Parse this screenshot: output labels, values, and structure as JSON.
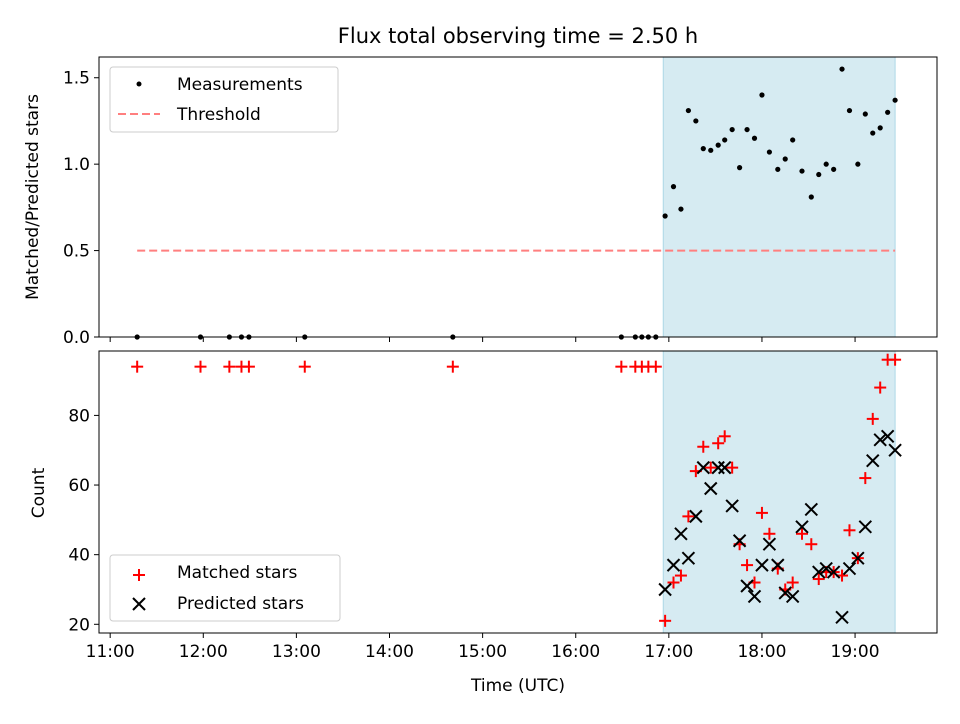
{
  "colors": {
    "shade": "#add8e6",
    "measurement": "#000000",
    "threshold": "#ff7f7f",
    "matched": "#ff0000",
    "predicted": "#000000"
  },
  "chart_data": [
    {
      "type": "scatter",
      "title": "Flux total observing time = 2.50 h",
      "xlabel": "",
      "ylabel": "Matched/Predicted stars",
      "xlim": [
        10.88,
        19.88
      ],
      "ylim": [
        0,
        1.62
      ],
      "yticks": [
        0.0,
        0.5,
        1.0,
        1.5
      ],
      "yticklabels": [
        "0.0",
        "0.5",
        "1.0",
        "1.5"
      ],
      "legend": "upper-left",
      "shaded_region": [
        16.94,
        19.43
      ],
      "series": [
        {
          "name": "Measurements",
          "marker": "dot",
          "points": [
            [
              11.29,
              0.0
            ],
            [
              11.97,
              0.0
            ],
            [
              12.28,
              0.0
            ],
            [
              12.41,
              0.0
            ],
            [
              12.49,
              0.0
            ],
            [
              13.09,
              0.0
            ],
            [
              14.68,
              0.0
            ],
            [
              16.49,
              0.0
            ],
            [
              16.64,
              0.0
            ],
            [
              16.71,
              0.0
            ],
            [
              16.78,
              0.0
            ],
            [
              16.86,
              0.0
            ],
            [
              16.96,
              0.7
            ],
            [
              17.05,
              0.87
            ],
            [
              17.13,
              0.74
            ],
            [
              17.21,
              1.31
            ],
            [
              17.29,
              1.25
            ],
            [
              17.37,
              1.09
            ],
            [
              17.45,
              1.08
            ],
            [
              17.53,
              1.11
            ],
            [
              17.6,
              1.14
            ],
            [
              17.68,
              1.2
            ],
            [
              17.76,
              0.98
            ],
            [
              17.84,
              1.2
            ],
            [
              17.92,
              1.15
            ],
            [
              18.0,
              1.4
            ],
            [
              18.08,
              1.07
            ],
            [
              18.17,
              0.97
            ],
            [
              18.25,
              1.03
            ],
            [
              18.33,
              1.14
            ],
            [
              18.43,
              0.96
            ],
            [
              18.53,
              0.81
            ],
            [
              18.61,
              0.94
            ],
            [
              18.69,
              1.0
            ],
            [
              18.77,
              0.97
            ],
            [
              18.86,
              1.55
            ],
            [
              18.94,
              1.31
            ],
            [
              19.03,
              1.0
            ],
            [
              19.11,
              1.29
            ],
            [
              19.19,
              1.18
            ],
            [
              19.27,
              1.21
            ],
            [
              19.35,
              1.3
            ],
            [
              19.43,
              1.37
            ]
          ]
        },
        {
          "name": "Threshold",
          "marker": "dashed-line",
          "points": [
            [
              11.29,
              0.5
            ],
            [
              19.43,
              0.5
            ]
          ]
        }
      ]
    },
    {
      "type": "scatter",
      "title": "",
      "xlabel": "Time (UTC)",
      "ylabel": "Count",
      "xlim": [
        10.88,
        19.88
      ],
      "ylim": [
        17.5,
        98.5
      ],
      "xticks": [
        11,
        12,
        13,
        14,
        15,
        16,
        17,
        18,
        19
      ],
      "xticklabels": [
        "11:00",
        "12:00",
        "13:00",
        "14:00",
        "15:00",
        "16:00",
        "17:00",
        "18:00",
        "19:00"
      ],
      "yticks": [
        20,
        40,
        60,
        80
      ],
      "yticklabels": [
        "20",
        "40",
        "60",
        "80"
      ],
      "legend": "lower-left",
      "shaded_region": [
        16.94,
        19.43
      ],
      "series": [
        {
          "name": "Matched stars",
          "marker": "plus",
          "points": [
            [
              11.29,
              94
            ],
            [
              11.97,
              94
            ],
            [
              12.28,
              94
            ],
            [
              12.41,
              94
            ],
            [
              12.49,
              94
            ],
            [
              13.09,
              94
            ],
            [
              14.68,
              94
            ],
            [
              16.49,
              94
            ],
            [
              16.64,
              94
            ],
            [
              16.71,
              94
            ],
            [
              16.78,
              94
            ],
            [
              16.86,
              94
            ],
            [
              16.96,
              21
            ],
            [
              17.05,
              32
            ],
            [
              17.13,
              34
            ],
            [
              17.21,
              51
            ],
            [
              17.29,
              64
            ],
            [
              17.37,
              71
            ],
            [
              17.45,
              65
            ],
            [
              17.53,
              72
            ],
            [
              17.6,
              74
            ],
            [
              17.68,
              65
            ],
            [
              17.76,
              43
            ],
            [
              17.84,
              37
            ],
            [
              17.92,
              32
            ],
            [
              18.0,
              52
            ],
            [
              18.08,
              46
            ],
            [
              18.17,
              36
            ],
            [
              18.25,
              30
            ],
            [
              18.33,
              32
            ],
            [
              18.43,
              46
            ],
            [
              18.53,
              43
            ],
            [
              18.61,
              33
            ],
            [
              18.69,
              35
            ],
            [
              18.77,
              35
            ],
            [
              18.86,
              34
            ],
            [
              18.94,
              47
            ],
            [
              19.03,
              39
            ],
            [
              19.11,
              62
            ],
            [
              19.19,
              79
            ],
            [
              19.27,
              88
            ],
            [
              19.35,
              96
            ],
            [
              19.43,
              96
            ]
          ]
        },
        {
          "name": "Predicted stars",
          "marker": "x",
          "points": [
            [
              16.96,
              30
            ],
            [
              17.05,
              37
            ],
            [
              17.13,
              46
            ],
            [
              17.21,
              39
            ],
            [
              17.29,
              51
            ],
            [
              17.37,
              65
            ],
            [
              17.45,
              59
            ],
            [
              17.53,
              65
            ],
            [
              17.6,
              65
            ],
            [
              17.68,
              54
            ],
            [
              17.76,
              44
            ],
            [
              17.84,
              31
            ],
            [
              17.92,
              28
            ],
            [
              18.0,
              37
            ],
            [
              18.08,
              43
            ],
            [
              18.17,
              37
            ],
            [
              18.25,
              29
            ],
            [
              18.33,
              28
            ],
            [
              18.43,
              48
            ],
            [
              18.53,
              53
            ],
            [
              18.61,
              35
            ],
            [
              18.69,
              36
            ],
            [
              18.77,
              35
            ],
            [
              18.86,
              22
            ],
            [
              18.94,
              36
            ],
            [
              19.03,
              39
            ],
            [
              19.11,
              48
            ],
            [
              19.19,
              67
            ],
            [
              19.27,
              73
            ],
            [
              19.35,
              74
            ],
            [
              19.43,
              70
            ]
          ]
        }
      ]
    }
  ]
}
